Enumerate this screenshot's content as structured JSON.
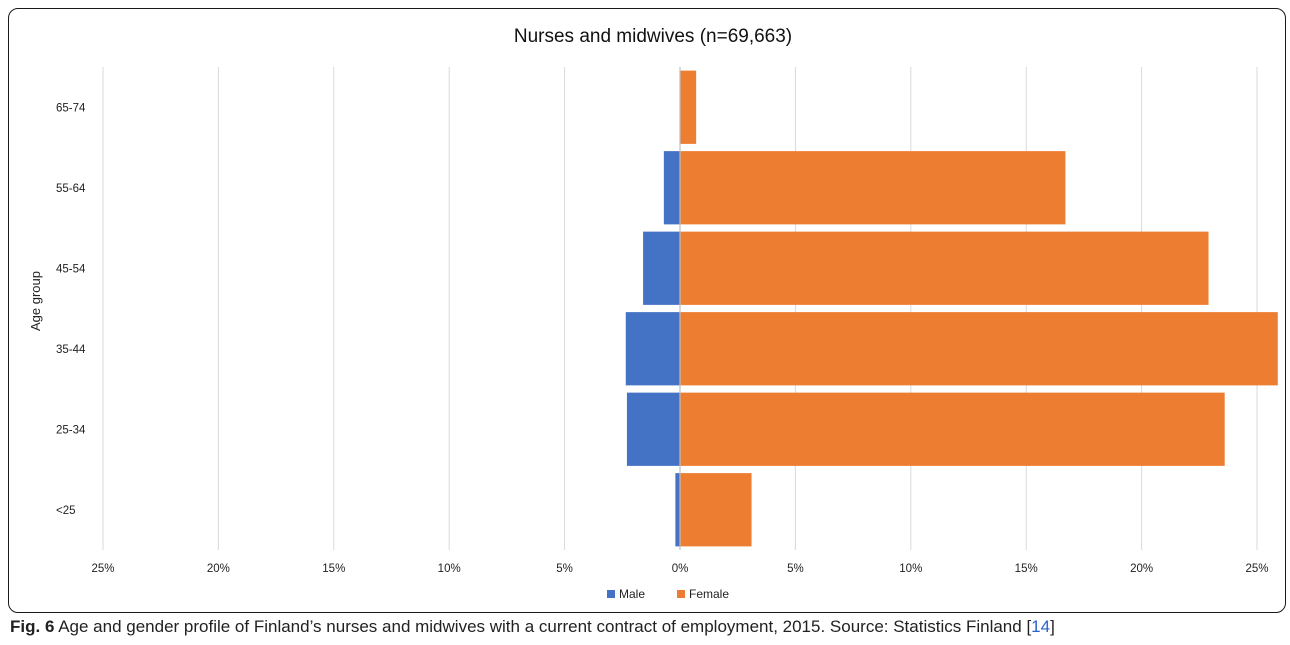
{
  "chart_data": {
    "type": "bar",
    "orientation": "horizontal",
    "layout": "population-pyramid",
    "title": "Nurses and midwives (n=69,663)",
    "xlabel": "",
    "ylabel": "Age group",
    "categories": [
      "65-74",
      "55-64",
      "45-54",
      "35-44",
      "25-34",
      "<25"
    ],
    "series": [
      {
        "name": "Male",
        "color": "#4472c4",
        "side": "left",
        "values": [
          0.0,
          0.7,
          1.6,
          2.35,
          2.3,
          0.2
        ]
      },
      {
        "name": "Female",
        "color": "#ed7d31",
        "side": "right",
        "values": [
          0.7,
          16.7,
          22.9,
          25.9,
          23.6,
          3.1
        ]
      }
    ],
    "xlim": [
      -25,
      25
    ],
    "xticks": [
      "25%",
      "20%",
      "15%",
      "10%",
      "5%",
      "0%",
      "5%",
      "10%",
      "15%",
      "20%",
      "25%"
    ],
    "grid": "vertical",
    "legend_position": "bottom"
  },
  "caption": {
    "label": "Fig. 6",
    "text": " Age and gender profile of Finland’s nurses and midwives with a current contract of employment, 2015. Source: Statistics Finland ",
    "ref_open": "[",
    "ref_number": "14",
    "ref_close": "]"
  }
}
